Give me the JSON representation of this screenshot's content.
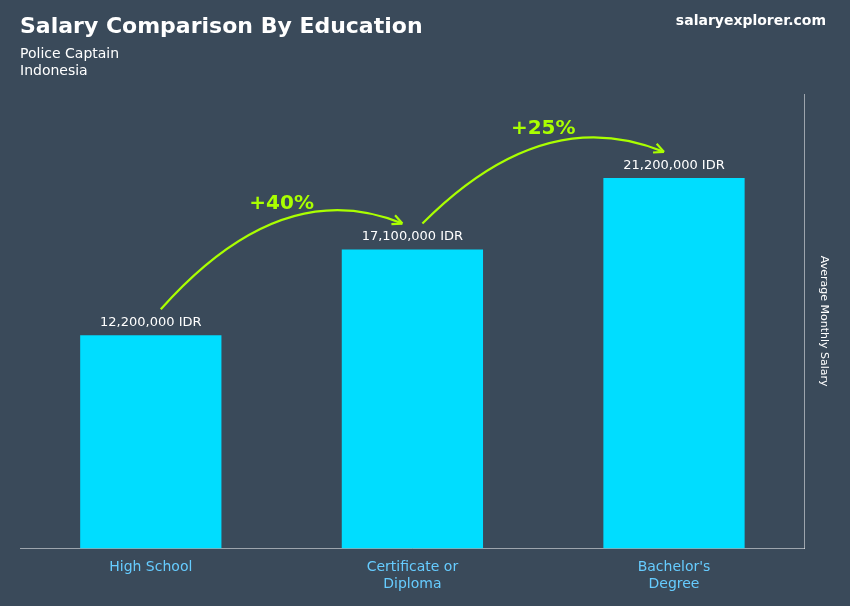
{
  "chart_data": {
    "type": "bar",
    "title": "Salary Comparison By Education",
    "subtitle": [
      "Police Captain",
      "Indonesia"
    ],
    "ylabel": "Average Monthly Salary",
    "categories": [
      "High School",
      "Certificate or\nDiploma",
      "Bachelor's\nDegree"
    ],
    "values": [
      12200000,
      17100000,
      21200000
    ],
    "value_labels": [
      "12,200,000 IDR",
      "17,100,000 IDR",
      "21,200,000 IDR"
    ],
    "data_labels": true,
    "annotations": [
      {
        "text": "+40%",
        "color": "#aaff00"
      },
      {
        "text": "+25%",
        "color": "#aaff00"
      }
    ],
    "watermark": "salaryexplorer.com",
    "color": "#00ddff",
    "ylim": [
      0,
      26000000
    ],
    "grid": false,
    "tick_labels": "x"
  }
}
